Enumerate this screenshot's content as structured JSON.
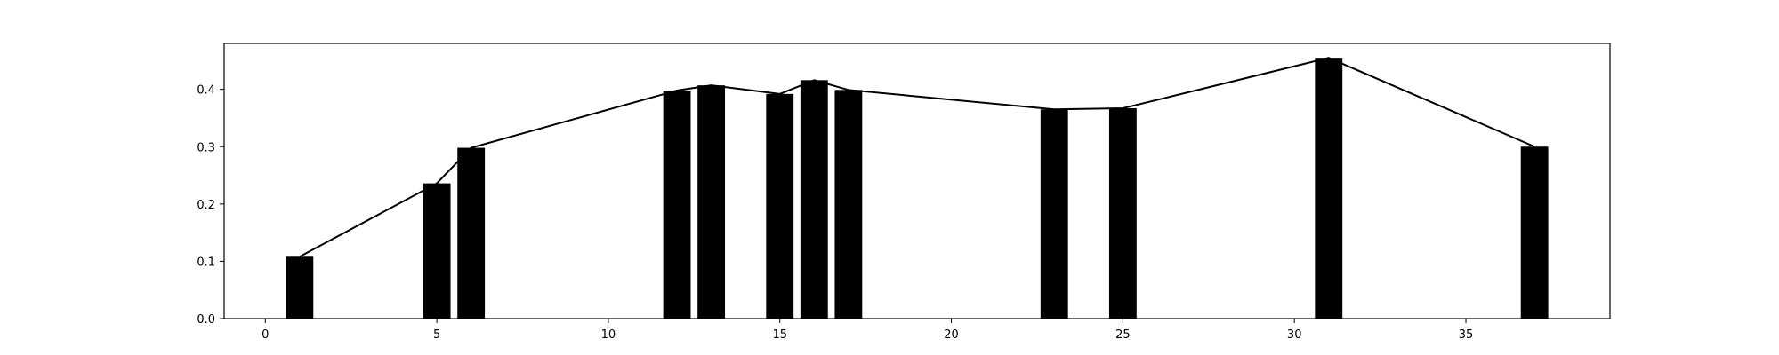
{
  "chart_data": {
    "type": "bar",
    "title": "",
    "xlabel": "",
    "ylabel": "",
    "xlim": [
      -1.2,
      39.2
    ],
    "ylim": [
      0,
      0.48
    ],
    "xticks": [
      0,
      5,
      10,
      15,
      20,
      25,
      30,
      35
    ],
    "yticks": [
      0.0,
      0.1,
      0.2,
      0.3,
      0.4
    ],
    "ytick_labels": [
      "0.0",
      "0.1",
      "0.2",
      "0.3",
      "0.4"
    ],
    "grid": false,
    "bar_width": 0.8,
    "x": [
      1,
      5,
      6,
      12,
      13,
      15,
      16,
      17,
      23,
      25,
      31,
      37
    ],
    "values": [
      0.108,
      0.236,
      0.298,
      0.398,
      0.407,
      0.392,
      0.416,
      0.399,
      0.365,
      0.367,
      0.455,
      0.3
    ],
    "line_overlay": true,
    "colors": {
      "bar": "#000000",
      "line": "#000000",
      "axes": "#000000"
    }
  }
}
